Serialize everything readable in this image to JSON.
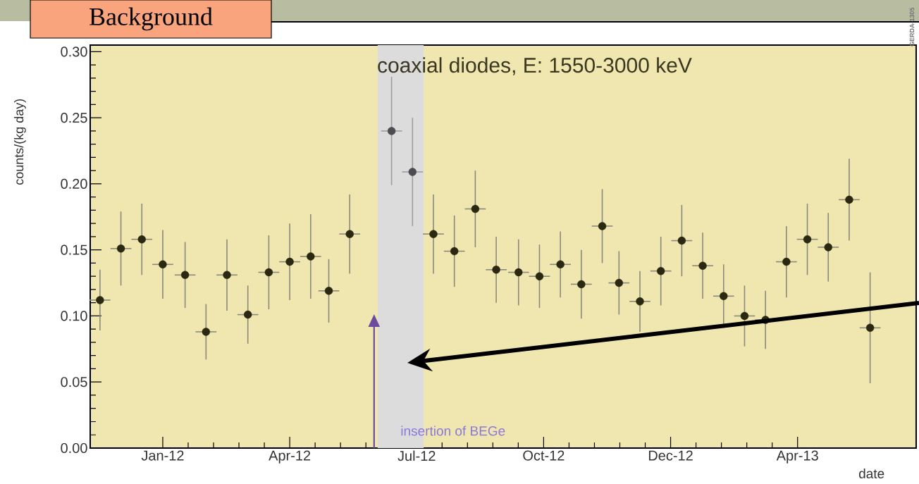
{
  "chart_data": {
    "type": "scatter",
    "title": "coaxial diodes, E: 1550-3000 keV",
    "xlabel": "date",
    "ylabel": "counts/(kg day)",
    "x": [
      "2011-11-18",
      "2011-12-03",
      "2011-12-18",
      "2012-01-02",
      "2012-01-18",
      "2012-02-02",
      "2012-02-17",
      "2012-03-03",
      "2012-03-18",
      "2012-04-02",
      "2012-04-17",
      "2012-04-30",
      "2012-05-15",
      "2012-06-14",
      "2012-06-29",
      "2012-07-14",
      "2012-07-29",
      "2012-08-13",
      "2012-08-28",
      "2012-09-13",
      "2012-09-28",
      "2012-10-13",
      "2012-10-28",
      "2012-11-12",
      "2012-11-24",
      "2012-12-09",
      "2012-12-24",
      "2013-01-08",
      "2013-01-23",
      "2013-02-07",
      "2013-02-22",
      "2013-03-09",
      "2013-03-24",
      "2013-04-08",
      "2013-04-23",
      "2013-05-08",
      "2013-05-23"
    ],
    "values": [
      0.112,
      0.151,
      0.158,
      0.139,
      0.131,
      0.088,
      0.131,
      0.101,
      0.133,
      0.141,
      0.145,
      0.119,
      0.162,
      0.24,
      0.209,
      0.162,
      0.149,
      0.181,
      0.135,
      0.133,
      0.13,
      0.139,
      0.124,
      0.168,
      0.125,
      0.111,
      0.134,
      0.157,
      0.138,
      0.115,
      0.1,
      0.097,
      0.141,
      0.158,
      0.152,
      0.188,
      0.091
    ],
    "errors": [
      0.023,
      0.028,
      0.027,
      0.026,
      0.025,
      0.021,
      0.027,
      0.022,
      0.028,
      0.029,
      0.032,
      0.024,
      0.03,
      0.041,
      0.041,
      0.03,
      0.027,
      0.029,
      0.025,
      0.025,
      0.024,
      0.025,
      0.026,
      0.028,
      0.024,
      0.023,
      0.026,
      0.027,
      0.025,
      0.024,
      0.023,
      0.022,
      0.027,
      0.027,
      0.026,
      0.031,
      0.042
    ],
    "xerrors": [
      7.5,
      7.5,
      7.5,
      7.5,
      7.5,
      7.5,
      7.5,
      7.5,
      7.5,
      7.5,
      7.5,
      7.5,
      7.5,
      7.5,
      7.5,
      7.5,
      7.5,
      7.5,
      7.5,
      7.5,
      7.5,
      7.5,
      7.5,
      7.5,
      7.5,
      7.5,
      7.5,
      7.5,
      7.5,
      7.5,
      7.5,
      7.5,
      7.5,
      7.5,
      7.5,
      7.5,
      7.5
    ],
    "colors": [
      "#2a2810",
      "#2a2810",
      "#2a2810",
      "#2a2810",
      "#2a2810",
      "#2a2810",
      "#2a2810",
      "#2a2810",
      "#2a2810",
      "#2a2810",
      "#2a2810",
      "#2a2810",
      "#2a2810",
      "#4c4c52",
      "#4c4c52",
      "#2a2810",
      "#2a2810",
      "#2a2810",
      "#2a2810",
      "#2a2810",
      "#2a2810",
      "#2a2810",
      "#2a2810",
      "#2a2810",
      "#2a2810",
      "#2a2810",
      "#2a2810",
      "#2a2810",
      "#2a2810",
      "#2a2810",
      "#2a2810",
      "#2a2810",
      "#2a2810",
      "#2a2810",
      "#2a2810",
      "#2a2810",
      "#2a2810"
    ],
    "xlim": [
      "2011-11-11",
      "2013-06-25"
    ],
    "xticks": [
      {
        "value": "2012-01-02",
        "label": "Jan-12"
      },
      {
        "value": "2012-04-02",
        "label": "Apr-12"
      },
      {
        "value": "2012-07-02",
        "label": "Jul-12"
      },
      {
        "value": "2012-10-01",
        "label": "Oct-12"
      },
      {
        "value": "2012-12-31",
        "label": "Dec-12"
      },
      {
        "value": "2013-04-01",
        "label": "Apr-13"
      }
    ],
    "ylim": [
      0,
      0.305
    ],
    "yticks": [
      {
        "value": 0,
        "label": "0.00"
      },
      {
        "value": 0.05,
        "label": "0.05"
      },
      {
        "value": 0.1,
        "label": "0.10"
      },
      {
        "value": 0.15,
        "label": "0.15"
      },
      {
        "value": 0.2,
        "label": "0.20"
      },
      {
        "value": 0.25,
        "label": "0.25"
      },
      {
        "value": 0.3,
        "label": "0.30"
      }
    ],
    "bands": [
      {
        "axis": "x",
        "from": "2012-06-04",
        "to": "2012-07-07",
        "color": "#dcdcdc"
      }
    ],
    "annotations": [
      "Background",
      "insertion of BEGe",
      "GERDA-1305"
    ]
  }
}
